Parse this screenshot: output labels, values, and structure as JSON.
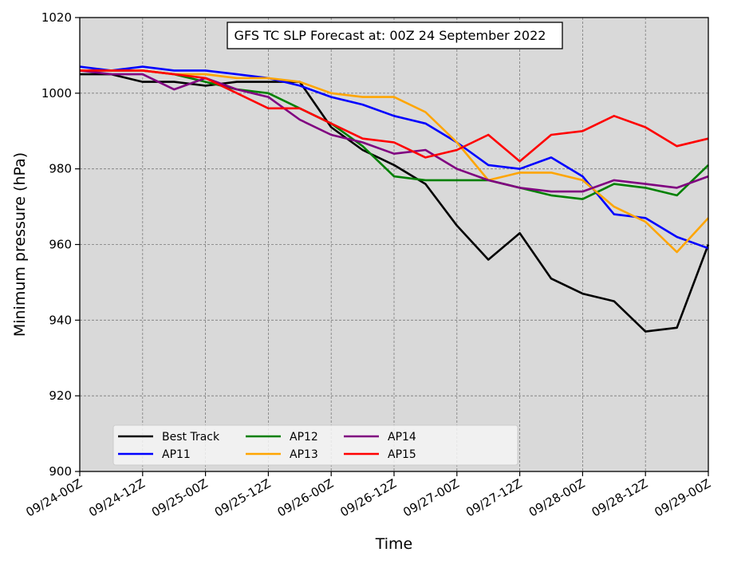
{
  "chart_data": {
    "type": "line",
    "title": "GFS TC SLP Forecast at: 00Z 24 September 2022",
    "xlabel": "Time",
    "ylabel": "Minimum pressure (hPa)",
    "ylim": [
      900,
      1020
    ],
    "yticks": [
      900,
      920,
      940,
      960,
      980,
      1000,
      1020
    ],
    "x": [
      "09/24-00Z",
      "09/24-06Z",
      "09/24-12Z",
      "09/24-18Z",
      "09/25-00Z",
      "09/25-06Z",
      "09/25-12Z",
      "09/25-18Z",
      "09/26-00Z",
      "09/26-06Z",
      "09/26-12Z",
      "09/26-18Z",
      "09/27-00Z",
      "09/27-06Z",
      "09/27-12Z",
      "09/27-18Z",
      "09/28-00Z",
      "09/28-06Z",
      "09/28-12Z",
      "09/28-18Z",
      "09/29-00Z"
    ],
    "xtick_labels": [
      "09/24-00Z",
      "09/24-12Z",
      "09/25-00Z",
      "09/25-12Z",
      "09/26-00Z",
      "09/26-12Z",
      "09/27-00Z",
      "09/27-12Z",
      "09/28-00Z",
      "09/28-12Z",
      "09/29-00Z"
    ],
    "grid": true,
    "legend_position": "lower-left",
    "background": "#d9d9d9",
    "series": [
      {
        "name": "Best Track",
        "color": "#000000",
        "values": [
          1005,
          1005,
          1003,
          1003,
          1002,
          1003,
          1003,
          1003,
          991,
          985,
          981,
          976,
          965,
          956,
          963,
          951,
          947,
          945,
          937,
          938,
          960
        ]
      },
      {
        "name": "AP11",
        "color": "#0000ff",
        "values": [
          1007,
          1006,
          1007,
          1006,
          1006,
          1005,
          1004,
          1002,
          999,
          997,
          994,
          992,
          987,
          981,
          980,
          983,
          978,
          968,
          967,
          962,
          959
        ]
      },
      {
        "name": "AP12",
        "color": "#008000",
        "values": [
          1006,
          1006,
          1006,
          1005,
          1003,
          1001,
          1000,
          996,
          992,
          986,
          978,
          977,
          977,
          977,
          975,
          973,
          972,
          976,
          975,
          973,
          981
        ]
      },
      {
        "name": "AP13",
        "color": "#ffa500",
        "values": [
          1006,
          1006,
          1006,
          1005,
          1005,
          1004,
          1004,
          1003,
          1000,
          999,
          999,
          995,
          987,
          977,
          979,
          979,
          977,
          970,
          966,
          958,
          967
        ]
      },
      {
        "name": "AP14",
        "color": "#800080",
        "values": [
          1006,
          1005,
          1005,
          1001,
          1004,
          1001,
          999,
          993,
          989,
          987,
          984,
          985,
          980,
          977,
          975,
          974,
          974,
          977,
          976,
          975,
          978
        ]
      },
      {
        "name": "AP15",
        "color": "#ff0000",
        "values": [
          1006,
          1006,
          1006,
          1005,
          1004,
          1000,
          996,
          996,
          992,
          988,
          987,
          983,
          985,
          989,
          982,
          989,
          990,
          994,
          991,
          986,
          988
        ]
      }
    ]
  }
}
